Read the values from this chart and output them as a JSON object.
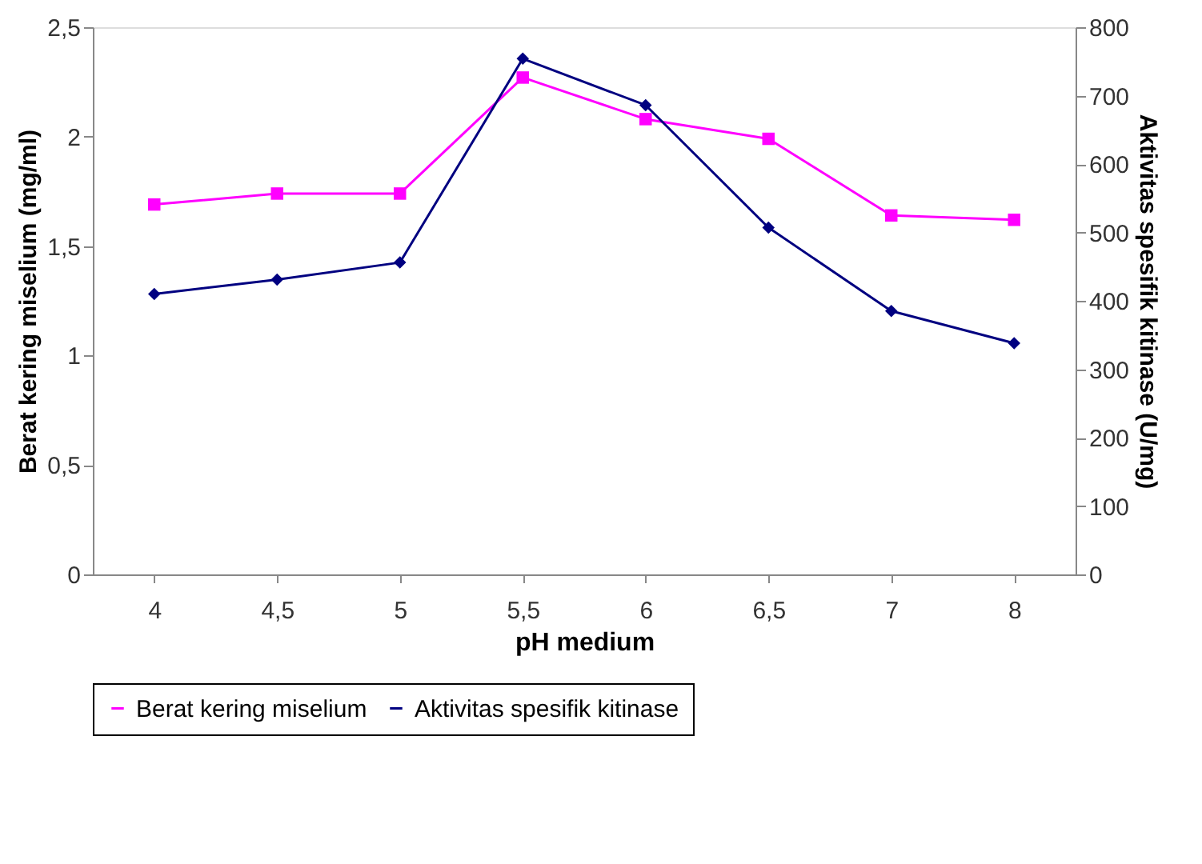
{
  "chart_data": {
    "type": "line",
    "xlabel": "pH medium",
    "ylabel": "Berat kering miselium (mg/ml)",
    "y2label": "Aktivitas spesifik kitinase (U/mg)",
    "categories": [
      "4",
      "4,5",
      "5",
      "5,5",
      "6",
      "6,5",
      "7",
      "8"
    ],
    "series": [
      {
        "name": "Berat kering miselium",
        "color": "#ff00ff",
        "marker": "square",
        "values": [
          1.69,
          1.74,
          1.74,
          2.27,
          2.08,
          1.99,
          1.64,
          1.62
        ]
      },
      {
        "name": "Aktivitas spesifik kitinase",
        "color": "#000080",
        "marker": "diamond",
        "axis": "y2",
        "values": [
          410,
          431,
          456,
          754,
          686,
          507,
          385,
          338
        ]
      }
    ],
    "ylim": [
      0,
      2.5
    ],
    "yticks": [
      0,
      {
        "value": 0.5,
        "label": "0,5"
      },
      1,
      {
        "value": 1.5,
        "label": "1,5"
      },
      2,
      {
        "value": 2.5,
        "label": "2,5"
      }
    ],
    "y2lim": [
      0,
      800
    ],
    "y2ticks": [
      0,
      100,
      200,
      300,
      400,
      500,
      600,
      700,
      800
    ],
    "grid": false,
    "legend": "bottom",
    "line_style": "solid"
  }
}
